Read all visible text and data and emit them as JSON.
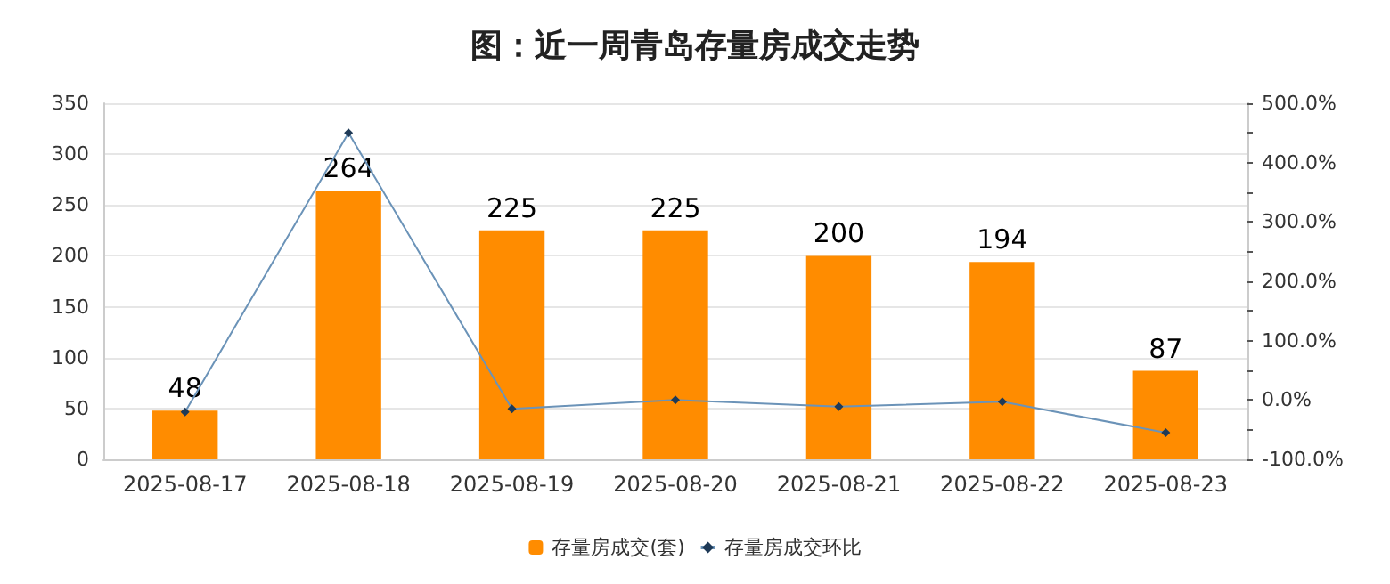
{
  "chart_data": {
    "type": "bar",
    "title": "图：近一周青岛存量房成交走势",
    "categories": [
      "2025-08-17",
      "2025-08-18",
      "2025-08-19",
      "2025-08-20",
      "2025-08-21",
      "2025-08-22",
      "2025-08-23"
    ],
    "series": [
      {
        "name": "存量房成交(套)",
        "color": "#ff8c00",
        "values": [
          48,
          264,
          225,
          225,
          200,
          194,
          87
        ],
        "value_labels": [
          "48",
          "264",
          "225",
          "225",
          "200",
          "194",
          "87"
        ]
      },
      {
        "name": "存量房成交环比",
        "type": "line",
        "axis": "y2",
        "color": "#6b93b8",
        "values": [
          -20,
          450,
          -15,
          0,
          -11,
          -3,
          -55
        ]
      }
    ],
    "ylim": [
      0,
      350
    ],
    "yticks": [
      0,
      50,
      100,
      150,
      200,
      250,
      300,
      350
    ],
    "y2lim": [
      -100,
      500
    ],
    "y2ticks": [
      {
        "value": -100,
        "label": "-100.0%"
      },
      {
        "value": -50,
        "label": null
      },
      {
        "value": 0,
        "label": "0.0%"
      },
      {
        "value": 50,
        "label": null
      },
      {
        "value": 100,
        "label": "100.0%"
      },
      {
        "value": 150,
        "label": null
      },
      {
        "value": 200,
        "label": "200.0%"
      },
      {
        "value": 250,
        "label": null
      },
      {
        "value": 300,
        "label": "300.0%"
      },
      {
        "value": 350,
        "label": null
      },
      {
        "value": 400,
        "label": "400.0%"
      },
      {
        "value": 450,
        "label": null
      },
      {
        "value": 500,
        "label": "500.0%"
      }
    ],
    "grid": "y",
    "legend": "bottom",
    "marker": "diamond",
    "line_style": "solid"
  }
}
